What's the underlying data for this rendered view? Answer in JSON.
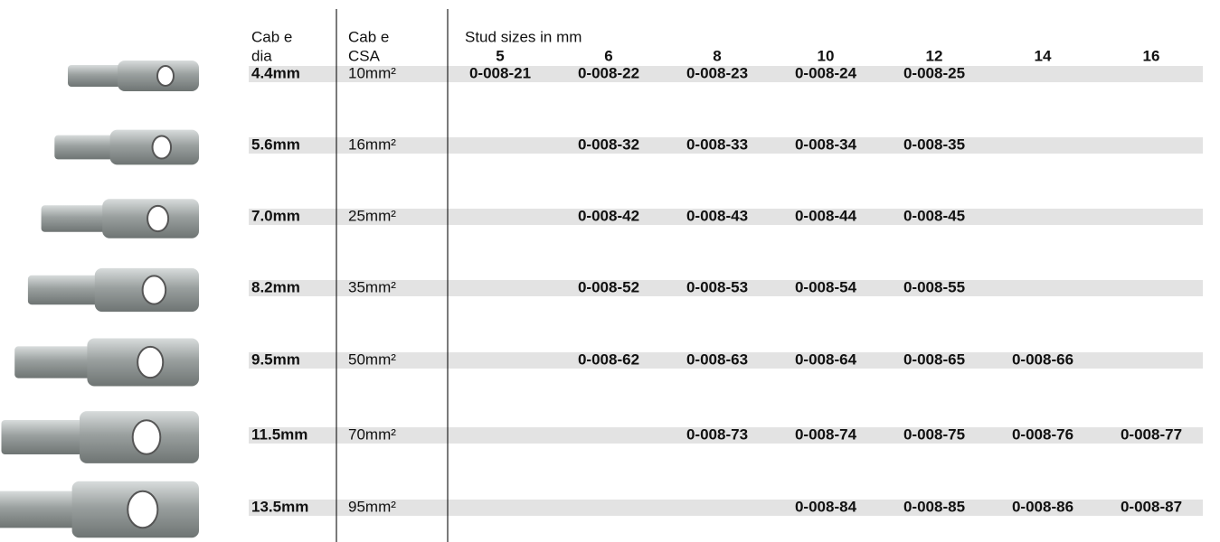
{
  "table": {
    "header": {
      "dia": [
        "Cab e",
        "dia"
      ],
      "csa": [
        "Cab e",
        "CSA"
      ],
      "stud_title": "Stud sizes in mm",
      "stud_sizes": [
        5,
        6,
        8,
        10,
        12,
        14,
        16
      ]
    },
    "rows": [
      {
        "dia": "4.4mm",
        "csa": "10mm²",
        "parts": [
          "0-008-21",
          "0-008-22",
          "0-008-23",
          "0-008-24",
          "0-008-25",
          null,
          null
        ]
      },
      {
        "dia": "5.6mm",
        "csa": "16mm²",
        "parts": [
          null,
          "0-008-32",
          "0-008-33",
          "0-008-34",
          "0-008-35",
          null,
          null
        ]
      },
      {
        "dia": "7.0mm",
        "csa": "25mm²",
        "parts": [
          null,
          "0-008-42",
          "0-008-43",
          "0-008-44",
          "0-008-45",
          null,
          null
        ]
      },
      {
        "dia": "8.2mm",
        "csa": "35mm²",
        "parts": [
          null,
          "0-008-52",
          "0-008-53",
          "0-008-54",
          "0-008-55",
          null,
          null
        ]
      },
      {
        "dia": "9.5mm",
        "csa": "50mm²",
        "parts": [
          null,
          "0-008-62",
          "0-008-63",
          "0-008-64",
          "0-008-65",
          "0-008-66",
          null
        ]
      },
      {
        "dia": "11.5mm",
        "csa": "70mm²",
        "parts": [
          null,
          null,
          "0-008-73",
          "0-008-74",
          "0-008-75",
          "0-008-76",
          "0-008-77"
        ]
      },
      {
        "dia": "13.5mm",
        "csa": "95mm²",
        "parts": [
          null,
          null,
          null,
          "0-008-84",
          "0-008-85",
          "0-008-86",
          "0-008-87"
        ]
      }
    ]
  }
}
